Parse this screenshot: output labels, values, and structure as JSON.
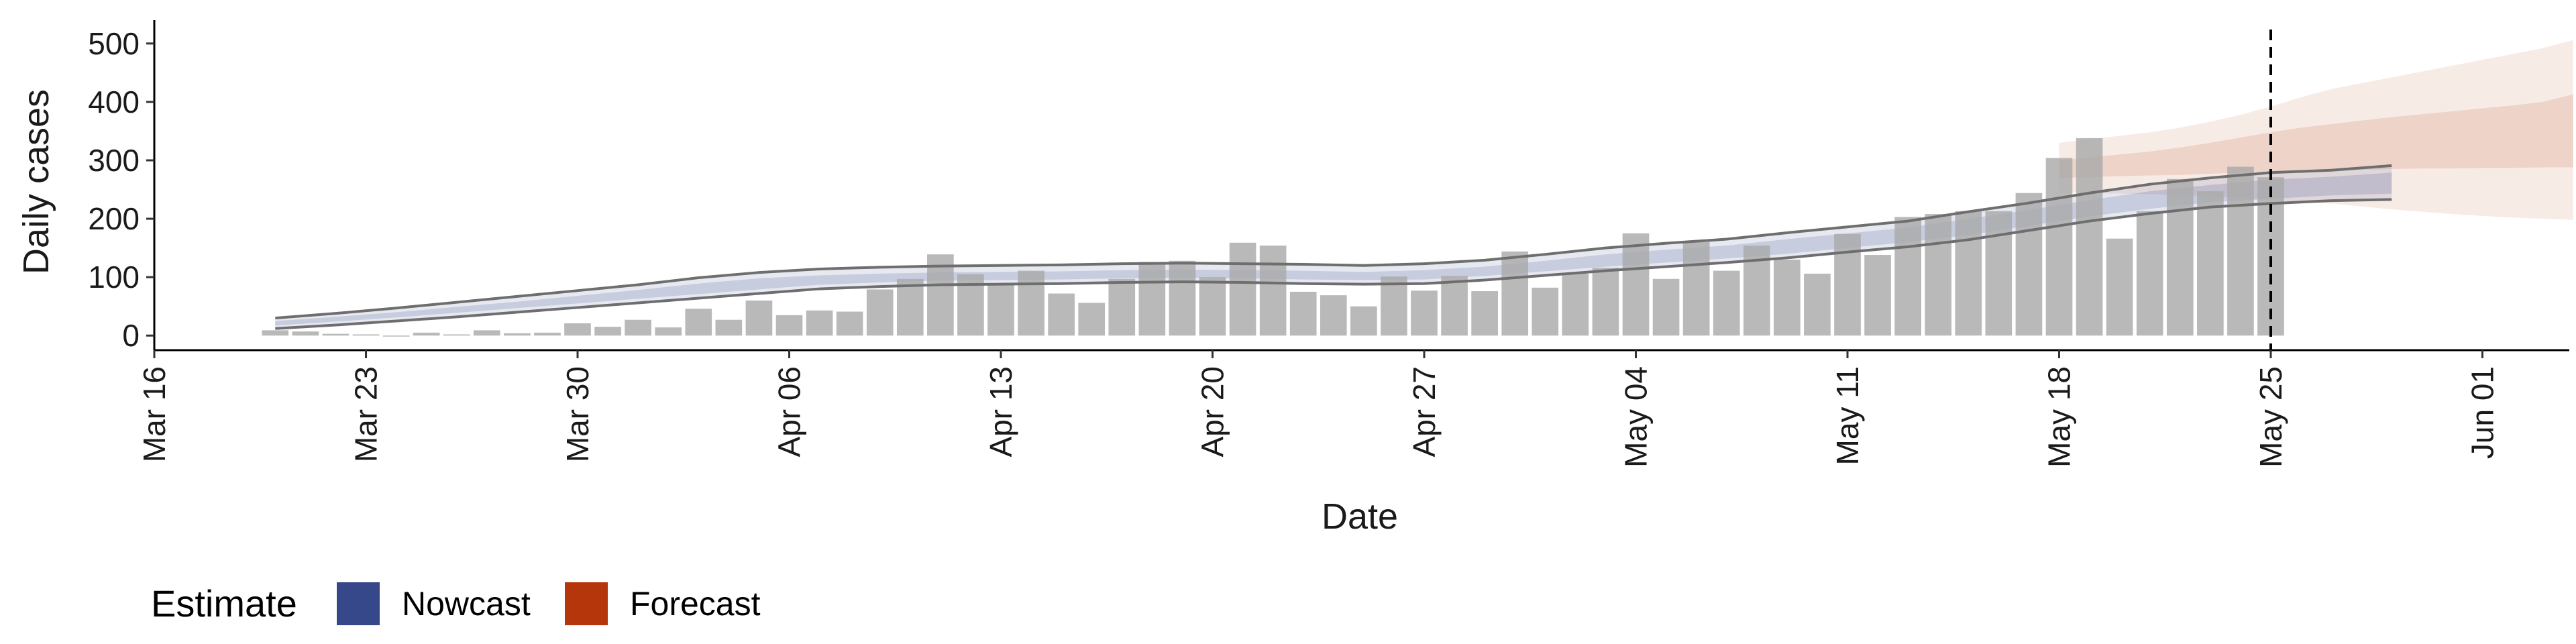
{
  "chart_data": {
    "type": "bar",
    "xlabel": "Date",
    "ylabel": "Daily cases",
    "x_start": "2020-03-16",
    "x_end": "2020-06-04",
    "ylim": [
      -25,
      540
    ],
    "yticks": [
      0,
      100,
      200,
      300,
      400,
      500
    ],
    "xticks": [
      {
        "date": "2020-03-16",
        "label": "Mar 16"
      },
      {
        "date": "2020-03-23",
        "label": "Mar 23"
      },
      {
        "date": "2020-03-30",
        "label": "Mar 30"
      },
      {
        "date": "2020-04-06",
        "label": "Apr 06"
      },
      {
        "date": "2020-04-13",
        "label": "Apr 13"
      },
      {
        "date": "2020-04-20",
        "label": "Apr 20"
      },
      {
        "date": "2020-04-27",
        "label": "Apr 27"
      },
      {
        "date": "2020-05-04",
        "label": "May 04"
      },
      {
        "date": "2020-05-11",
        "label": "May 11"
      },
      {
        "date": "2020-05-18",
        "label": "May 18"
      },
      {
        "date": "2020-05-25",
        "label": "May 25"
      },
      {
        "date": "2020-06-01",
        "label": "Jun 01"
      }
    ],
    "vline_date": "2020-05-25",
    "reported_cases": {
      "first_date": "2020-03-20",
      "values": [
        9,
        7,
        3,
        2,
        0,
        5,
        2,
        9,
        4,
        5,
        21,
        15,
        27,
        14,
        46,
        27,
        60,
        35,
        43,
        41,
        79,
        97,
        139,
        105,
        89,
        111,
        72,
        56,
        97,
        126,
        128,
        100,
        159,
        154,
        75,
        69,
        50,
        101,
        77,
        102,
        76,
        144,
        82,
        106,
        116,
        175,
        97,
        160,
        111,
        154,
        130,
        106,
        174,
        138,
        203,
        208,
        213,
        213,
        244,
        304,
        338,
        166,
        213,
        268,
        247,
        289,
        271
      ]
    },
    "legend": {
      "title": "Estimate",
      "entries": [
        {
          "label": "Nowcast",
          "color": "#36488a"
        },
        {
          "label": "Forecast",
          "color": "#b5360a"
        }
      ]
    },
    "nowcast": {
      "first_date": "2020-03-20",
      "dates_step_days": 2,
      "outer_lower": [
        12,
        18,
        25,
        32,
        40,
        48,
        56,
        64,
        72,
        80,
        84,
        87,
        88,
        89,
        91,
        92,
        91,
        89,
        88,
        89,
        95,
        103,
        111,
        118,
        125,
        133,
        143,
        152,
        164,
        180,
        196,
        209,
        220,
        226,
        231,
        233
      ],
      "outer_upper": [
        30,
        38,
        47,
        57,
        67,
        77,
        87,
        99,
        108,
        114,
        117,
        119,
        120,
        121,
        123,
        124,
        123,
        122,
        120,
        123,
        129,
        139,
        150,
        158,
        165,
        176,
        186,
        196,
        212,
        227,
        244,
        259,
        270,
        279,
        283,
        291
      ],
      "inner_lower": [
        17,
        24,
        31,
        39,
        47,
        55,
        63,
        71,
        79,
        87,
        91,
        94,
        95,
        96,
        98,
        99,
        98,
        96,
        95,
        96,
        102,
        110,
        118,
        125,
        132,
        140,
        150,
        160,
        172,
        188,
        204,
        217,
        228,
        234,
        240,
        243
      ],
      "inner_upper": [
        25,
        32,
        40,
        49,
        58,
        68,
        78,
        89,
        98,
        103,
        106,
        108,
        109,
        110,
        112,
        113,
        112,
        111,
        109,
        112,
        118,
        128,
        139,
        147,
        154,
        165,
        175,
        185,
        200,
        215,
        232,
        247,
        258,
        267,
        272,
        279
      ]
    },
    "forecast": {
      "first_date": "2020-05-18",
      "dates_step_days": 1,
      "outer_lower": [
        245,
        244,
        243,
        242,
        241,
        238,
        236,
        232,
        229,
        226,
        221,
        216,
        212,
        208,
        205,
        202,
        200,
        198
      ],
      "outer_upper": [
        330,
        336,
        342,
        348,
        356,
        366,
        378,
        392,
        408,
        422,
        432,
        442,
        452,
        462,
        472,
        482,
        492,
        506
      ],
      "inner_lower": [
        270,
        271,
        273,
        274,
        275,
        277,
        279,
        281,
        282,
        283,
        284,
        285,
        286,
        286,
        287,
        287,
        288,
        288
      ],
      "inner_upper": [
        300,
        305,
        310,
        315,
        322,
        330,
        339,
        348,
        356,
        362,
        368,
        374,
        379,
        384,
        389,
        394,
        400,
        413
      ]
    },
    "bounds_lines": {
      "first_date": "2020-03-20",
      "dates_step_days": 2,
      "lower": [
        12,
        18,
        25,
        32,
        40,
        48,
        56,
        64,
        72,
        80,
        84,
        87,
        88,
        89,
        91,
        92,
        91,
        89,
        88,
        89,
        95,
        103,
        111,
        118,
        125,
        133,
        143,
        152,
        164,
        180,
        196,
        209,
        220,
        226,
        231,
        233
      ],
      "upper": [
        30,
        38,
        47,
        57,
        67,
        77,
        87,
        99,
        108,
        114,
        117,
        119,
        120,
        121,
        123,
        124,
        123,
        122,
        120,
        123,
        129,
        139,
        150,
        158,
        165,
        176,
        186,
        196,
        212,
        227,
        244,
        259,
        270,
        279,
        283,
        291
      ]
    }
  }
}
